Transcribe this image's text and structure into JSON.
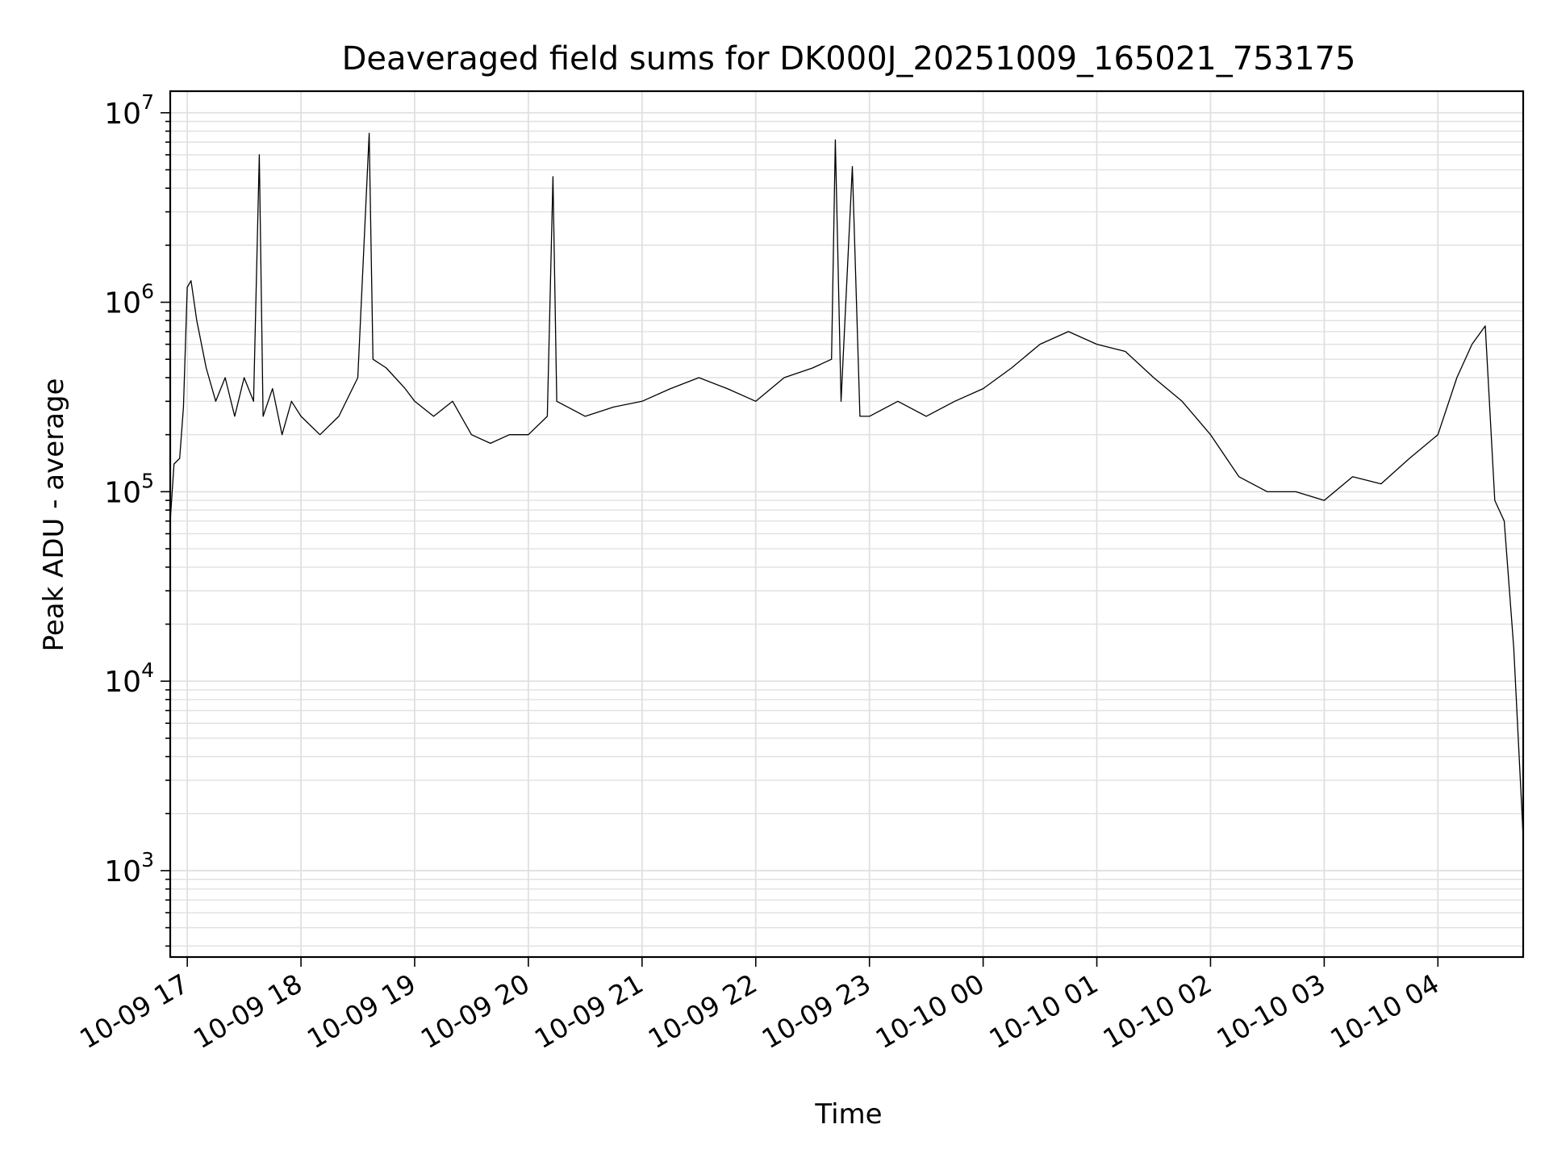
{
  "chart_data": {
    "type": "line",
    "title": "Deaveraged field sums for DK000J_20251009_165021_753175",
    "xlabel": "Time",
    "ylabel": "Peak ADU - average",
    "x_scale": "time",
    "y_scale": "log",
    "xlim": [
      "2025-10-09 16:51",
      "2025-10-10 04:45"
    ],
    "ylim": [
      350,
      13000000
    ],
    "grid": true,
    "line_color": "#000000",
    "grid_color": "#e0e0e0",
    "x_ticks": [
      "10-09 17",
      "10-09 18",
      "10-09 19",
      "10-09 20",
      "10-09 21",
      "10-09 22",
      "10-09 23",
      "10-10 00",
      "10-10 01",
      "10-10 02",
      "10-10 03",
      "10-10 04"
    ],
    "y_ticks": [
      {
        "base": "10",
        "exp": "3",
        "value": 1000
      },
      {
        "base": "10",
        "exp": "4",
        "value": 10000
      },
      {
        "base": "10",
        "exp": "5",
        "value": 100000
      },
      {
        "base": "10",
        "exp": "6",
        "value": 1000000
      },
      {
        "base": "10",
        "exp": "7",
        "value": 10000000
      }
    ],
    "series": [
      {
        "x": [
          "2025-10-09 16:51",
          "2025-10-09 16:53",
          "2025-10-09 16:56",
          "2025-10-09 16:58",
          "2025-10-09 17:00",
          "2025-10-09 17:02",
          "2025-10-09 17:05",
          "2025-10-09 17:10",
          "2025-10-09 17:15",
          "2025-10-09 17:20",
          "2025-10-09 17:25",
          "2025-10-09 17:30",
          "2025-10-09 17:35",
          "2025-10-09 17:38",
          "2025-10-09 17:40",
          "2025-10-09 17:45",
          "2025-10-09 17:50",
          "2025-10-09 17:55",
          "2025-10-09 18:00",
          "2025-10-09 18:10",
          "2025-10-09 18:20",
          "2025-10-09 18:30",
          "2025-10-09 18:36",
          "2025-10-09 18:38",
          "2025-10-09 18:45",
          "2025-10-09 18:55",
          "2025-10-09 19:00",
          "2025-10-09 19:10",
          "2025-10-09 19:20",
          "2025-10-09 19:30",
          "2025-10-09 19:40",
          "2025-10-09 19:50",
          "2025-10-09 20:00",
          "2025-10-09 20:10",
          "2025-10-09 20:13",
          "2025-10-09 20:15",
          "2025-10-09 20:30",
          "2025-10-09 20:45",
          "2025-10-09 21:00",
          "2025-10-09 21:15",
          "2025-10-09 21:30",
          "2025-10-09 21:45",
          "2025-10-09 22:00",
          "2025-10-09 22:15",
          "2025-10-09 22:30",
          "2025-10-09 22:40",
          "2025-10-09 22:42",
          "2025-10-09 22:45",
          "2025-10-09 22:51",
          "2025-10-09 22:55",
          "2025-10-09 23:00",
          "2025-10-09 23:15",
          "2025-10-09 23:30",
          "2025-10-09 23:45",
          "2025-10-10 00:00",
          "2025-10-10 00:15",
          "2025-10-10 00:30",
          "2025-10-10 00:45",
          "2025-10-10 01:00",
          "2025-10-10 01:15",
          "2025-10-10 01:30",
          "2025-10-10 01:45",
          "2025-10-10 02:00",
          "2025-10-10 02:15",
          "2025-10-10 02:30",
          "2025-10-10 02:45",
          "2025-10-10 03:00",
          "2025-10-10 03:15",
          "2025-10-10 03:30",
          "2025-10-10 03:45",
          "2025-10-10 04:00",
          "2025-10-10 04:10",
          "2025-10-10 04:18",
          "2025-10-10 04:25",
          "2025-10-10 04:30",
          "2025-10-10 04:35",
          "2025-10-10 04:40",
          "2025-10-10 04:45"
        ],
        "y": [
          70000,
          140000,
          150000,
          280000,
          1200000,
          1300000,
          800000,
          450000,
          300000,
          400000,
          250000,
          400000,
          300000,
          6000000,
          250000,
          350000,
          200000,
          300000,
          250000,
          200000,
          250000,
          400000,
          7800000,
          500000,
          450000,
          350000,
          300000,
          250000,
          300000,
          200000,
          180000,
          200000,
          200000,
          250000,
          4600000,
          300000,
          250000,
          280000,
          300000,
          350000,
          400000,
          350000,
          300000,
          400000,
          450000,
          500000,
          7200000,
          300000,
          5200000,
          250000,
          250000,
          300000,
          250000,
          300000,
          350000,
          450000,
          600000,
          700000,
          600000,
          550000,
          400000,
          300000,
          200000,
          120000,
          100000,
          100000,
          90000,
          120000,
          110000,
          150000,
          200000,
          400000,
          600000,
          750000,
          90000,
          70000,
          15000,
          1500
        ]
      }
    ]
  }
}
